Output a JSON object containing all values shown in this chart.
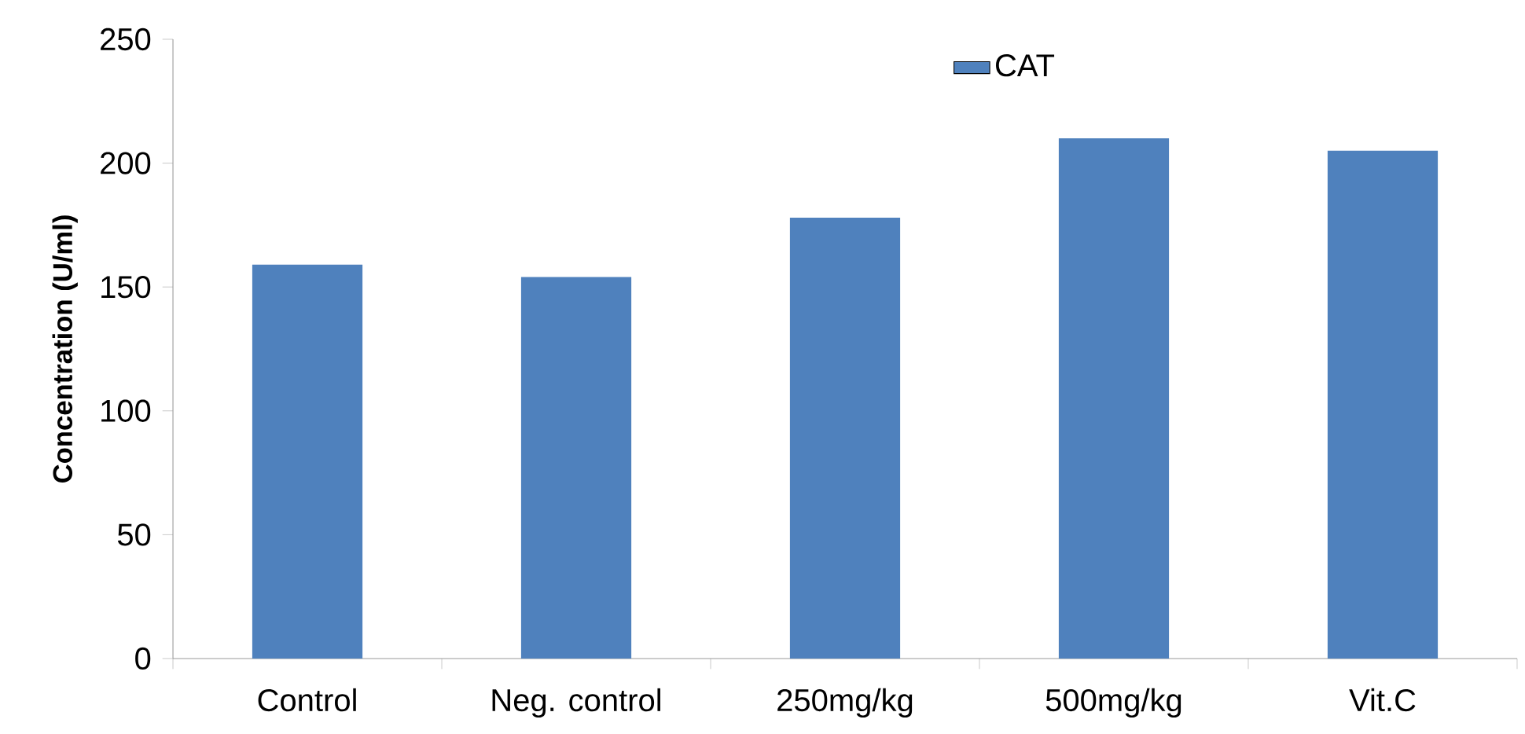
{
  "chart_data": {
    "type": "bar",
    "ylabel": "Concentration (U/ml)",
    "categories": [
      "Control",
      "Neg. control",
      "250mg/kg",
      "500mg/kg",
      "Vit.C"
    ],
    "series": [
      {
        "name": "CAT",
        "color": "#4f81bd",
        "values": [
          159,
          154,
          178,
          210,
          205
        ]
      }
    ],
    "ylim": [
      0,
      250
    ],
    "yticks": [
      0,
      50,
      100,
      150,
      200,
      250
    ],
    "grid": false,
    "legend": "top"
  }
}
